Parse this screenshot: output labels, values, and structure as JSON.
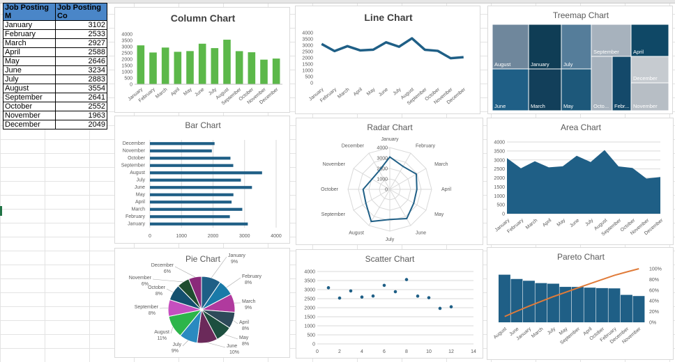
{
  "table": {
    "headers": [
      "Job Posting M",
      "Job Posting Co"
    ],
    "rows": [
      [
        "January",
        "3102"
      ],
      [
        "February",
        "2533"
      ],
      [
        "March",
        "2927"
      ],
      [
        "April",
        "2588"
      ],
      [
        "May",
        "2646"
      ],
      [
        "June",
        "3234"
      ],
      [
        "July",
        "2883"
      ],
      [
        "August",
        "3554"
      ],
      [
        "September",
        "2641"
      ],
      [
        "October",
        "2552"
      ],
      [
        "November",
        "1963"
      ],
      [
        "December",
        "2049"
      ]
    ]
  },
  "colors": {
    "green": "#5cb84a",
    "navy": "#1f5f86",
    "orange": "#e07b39"
  },
  "chart_data": [
    {
      "type": "bar",
      "title": "Column Chart",
      "categories": [
        "January",
        "February",
        "March",
        "April",
        "May",
        "June",
        "July",
        "August",
        "September",
        "October",
        "November",
        "December"
      ],
      "values": [
        3102,
        2533,
        2927,
        2588,
        2646,
        3234,
        2883,
        3554,
        2641,
        2552,
        1963,
        2049
      ],
      "ylim": [
        0,
        4000
      ],
      "yticks": [
        "0",
        "500",
        "1000",
        "1500",
        "2000",
        "2500",
        "3000",
        "3500",
        "4000"
      ]
    },
    {
      "type": "line",
      "title": "Line Chart",
      "categories": [
        "January",
        "February",
        "March",
        "April",
        "May",
        "June",
        "July",
        "August",
        "September",
        "October",
        "November",
        "December"
      ],
      "values": [
        3102,
        2533,
        2927,
        2588,
        2646,
        3234,
        2883,
        3554,
        2641,
        2552,
        1963,
        2049
      ],
      "ylim": [
        0,
        4000
      ],
      "yticks": [
        "0",
        "500",
        "1000",
        "1500",
        "2000",
        "2500",
        "3000",
        "3500",
        "4000"
      ]
    },
    {
      "type": "treemap",
      "title": "Treemap Chart",
      "labels": [
        "August",
        "June",
        "January",
        "March",
        "July",
        "May",
        "September",
        "October",
        "February",
        "April",
        "December",
        "November"
      ],
      "values": [
        3554,
        3234,
        3102,
        2927,
        2883,
        2646,
        2641,
        2552,
        2533,
        2588,
        2049,
        1963
      ],
      "display": [
        "August",
        "June",
        "January",
        "March",
        "July",
        "May",
        "September",
        "Octo...",
        "Febr...",
        "April",
        "December",
        "November"
      ]
    },
    {
      "type": "bar",
      "orientation": "horizontal",
      "title": "Bar Chart",
      "categories": [
        "January",
        "February",
        "March",
        "April",
        "May",
        "June",
        "July",
        "August",
        "September",
        "October",
        "November",
        "December"
      ],
      "values": [
        3102,
        2533,
        2927,
        2588,
        2646,
        3234,
        2883,
        3554,
        2641,
        2552,
        1963,
        2049
      ],
      "xlim": [
        0,
        4000
      ],
      "xticks": [
        "0",
        "1000",
        "2000",
        "3000",
        "4000"
      ]
    },
    {
      "type": "radar",
      "title": "Radar Chart",
      "categories": [
        "January",
        "February",
        "March",
        "April",
        "May",
        "June",
        "July",
        "August",
        "September",
        "October",
        "November",
        "December"
      ],
      "values": [
        3102,
        2533,
        2927,
        2588,
        2646,
        3234,
        2883,
        3554,
        2641,
        2552,
        1963,
        2049
      ],
      "rlim": [
        0,
        4000
      ],
      "rticks": [
        "0",
        "1000",
        "2000",
        "3000",
        "4000"
      ]
    },
    {
      "type": "area",
      "title": "Area Chart",
      "categories": [
        "January",
        "February",
        "March",
        "April",
        "May",
        "June",
        "July",
        "August",
        "September",
        "October",
        "November",
        "December"
      ],
      "values": [
        3102,
        2533,
        2927,
        2588,
        2646,
        3234,
        2883,
        3554,
        2641,
        2552,
        1963,
        2049
      ],
      "ylim": [
        0,
        4000
      ],
      "yticks": [
        "0",
        "500",
        "1000",
        "1500",
        "2000",
        "2500",
        "3000",
        "3500",
        "4000"
      ]
    },
    {
      "type": "pie",
      "title": "Pie Chart",
      "categories": [
        "January",
        "February",
        "March",
        "April",
        "May",
        "June",
        "July",
        "August",
        "September",
        "October",
        "November",
        "December"
      ],
      "values": [
        3102,
        2533,
        2927,
        2588,
        2646,
        3234,
        2883,
        3554,
        2641,
        2552,
        1963,
        2049
      ],
      "percent_labels": [
        "9%",
        "8%",
        "9%",
        "8%",
        "8%",
        "10%",
        "9%",
        "11%",
        "8%",
        "8%",
        "6%",
        "6%"
      ],
      "slice_colors": [
        "#1f5f86",
        "#1a7aa8",
        "#b03a9e",
        "#2e4a5a",
        "#1d4f3f",
        "#6b2a5a",
        "#2a8ac0",
        "#2db54a",
        "#c54fbf",
        "#14506e",
        "#1f4d2f",
        "#8a2a7a"
      ]
    },
    {
      "type": "scatter",
      "title": "Scatter Chart",
      "x": [
        1,
        2,
        3,
        4,
        5,
        6,
        7,
        8,
        9,
        10,
        11,
        12
      ],
      "y": [
        3102,
        2533,
        2927,
        2588,
        2646,
        3234,
        2883,
        3554,
        2641,
        2552,
        1963,
        2049
      ],
      "xlim": [
        0,
        14
      ],
      "ylim": [
        0,
        4000
      ],
      "xticks": [
        "0",
        "2",
        "4",
        "6",
        "8",
        "10",
        "12",
        "14"
      ],
      "yticks": [
        "0",
        "500",
        "1000",
        "1500",
        "2000",
        "2500",
        "3000",
        "3500",
        "4000"
      ]
    },
    {
      "type": "pareto",
      "title": "Pareto Chart",
      "categories": [
        "August",
        "June",
        "January",
        "March",
        "July",
        "May",
        "September",
        "April",
        "October",
        "February",
        "December",
        "November"
      ],
      "values": [
        3554,
        3234,
        3102,
        2927,
        2883,
        2646,
        2641,
        2588,
        2552,
        2533,
        2049,
        1963
      ],
      "ylim": [
        0,
        4000
      ],
      "y2ticks": [
        "0%",
        "20%",
        "40%",
        "60%",
        "80%",
        "100%"
      ]
    }
  ]
}
